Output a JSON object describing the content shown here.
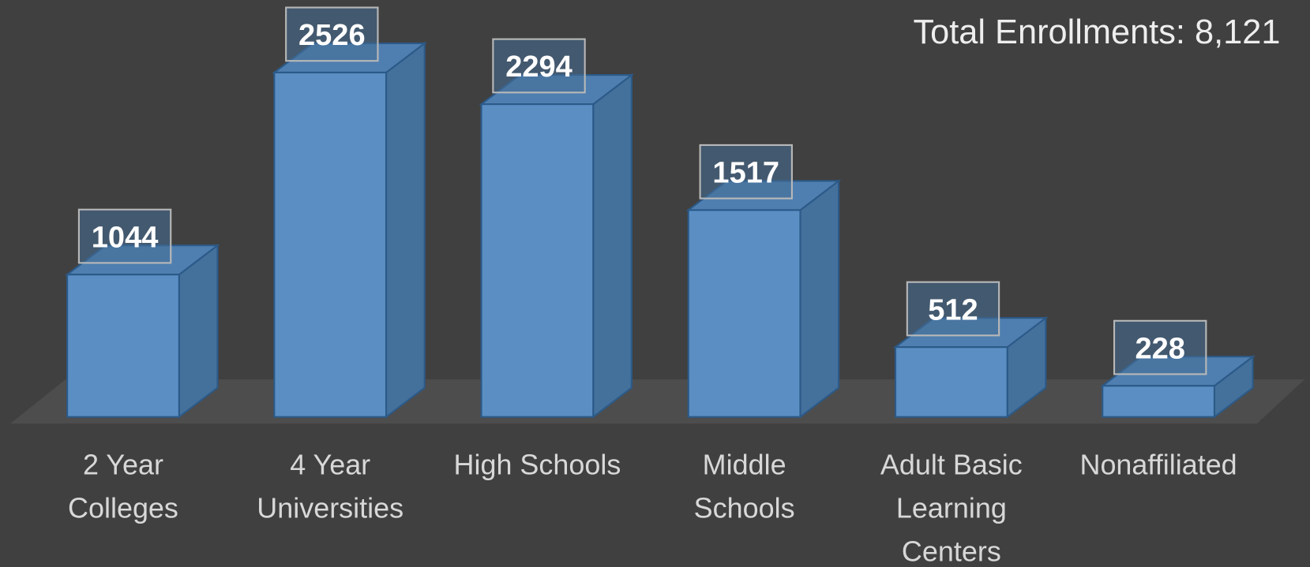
{
  "chart_data": {
    "type": "bar",
    "title": "Total Enrollments: 8,121",
    "categories": [
      "2 Year Colleges",
      "4 Year Universities",
      "High Schools",
      "Middle Schools",
      "Adult Basic Learning Centers",
      "Nonaffiliated"
    ],
    "values": [
      1044,
      2526,
      2294,
      1517,
      512,
      228
    ],
    "color": "#5b8fc4"
  }
}
